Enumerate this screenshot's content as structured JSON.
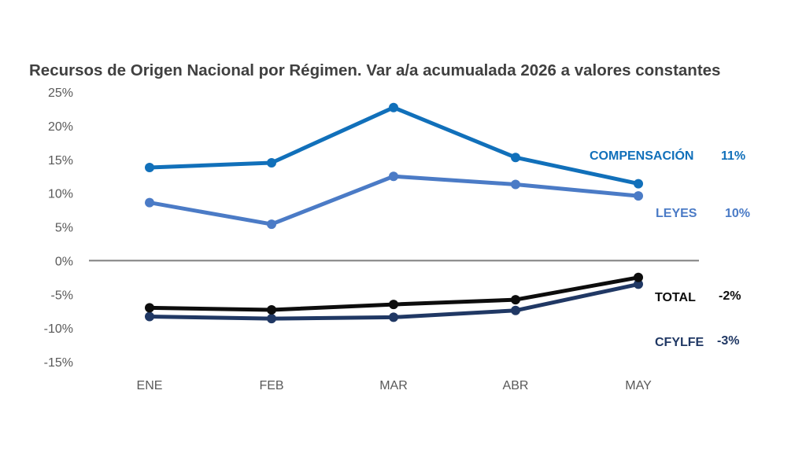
{
  "chart_data": {
    "type": "line",
    "title": "Recursos de Origen Nacional por Régimen. Var a/a acumualada 2026 a valores constantes",
    "categories": [
      "ENE",
      "FEB",
      "MAR",
      "ABR",
      "MAY"
    ],
    "ylim": [
      -15,
      25
    ],
    "yticks": [
      "25%",
      "20%",
      "15%",
      "10%",
      "5%",
      "0%",
      "-5%",
      "-10%",
      "-15%"
    ],
    "grid": false,
    "series": [
      {
        "name": "COMPENSACIÓN",
        "end_label": "11%",
        "color": "#1170BA",
        "values": [
          13.8,
          14.5,
          22.7,
          15.3,
          11.4
        ]
      },
      {
        "name": "LEYES",
        "end_label": "10%",
        "color": "#4B7BC6",
        "values": [
          8.6,
          5.4,
          12.5,
          11.3,
          9.6
        ]
      },
      {
        "name": "TOTAL",
        "end_label": "-2%",
        "color": "#0D0D0D",
        "values": [
          -7.0,
          -7.3,
          -6.5,
          -5.8,
          -2.5
        ]
      },
      {
        "name": "CFYLFE",
        "end_label": "-3%",
        "color": "#203864",
        "values": [
          -8.3,
          -8.6,
          -8.4,
          -7.4,
          -3.5
        ]
      }
    ]
  }
}
